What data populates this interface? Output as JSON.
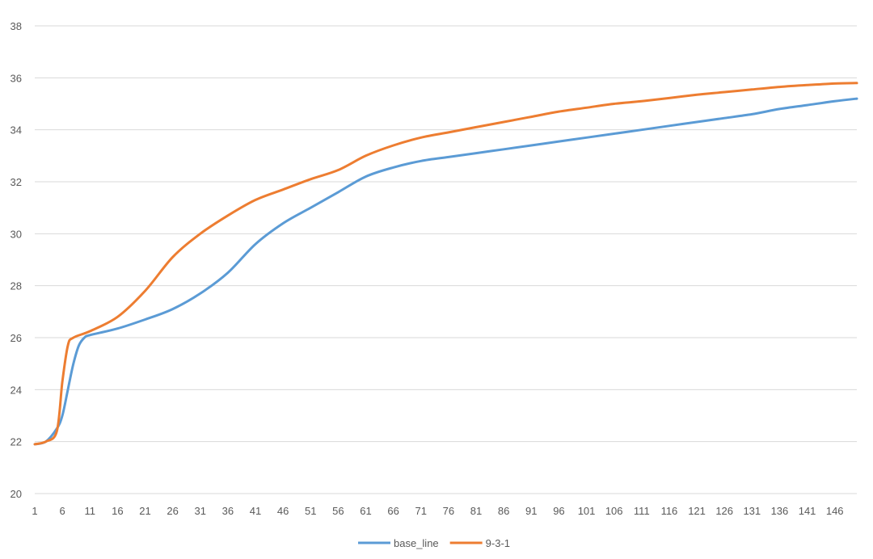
{
  "chart_data": {
    "type": "line",
    "title": "",
    "xlabel": "",
    "ylabel": "",
    "ylim": [
      20,
      38
    ],
    "y_ticks": [
      20,
      22,
      24,
      26,
      28,
      30,
      32,
      34,
      36,
      38
    ],
    "x_range": [
      1,
      150
    ],
    "x_ticks": [
      1,
      6,
      11,
      16,
      21,
      26,
      31,
      36,
      41,
      46,
      51,
      56,
      61,
      66,
      71,
      76,
      81,
      86,
      91,
      96,
      101,
      106,
      111,
      116,
      121,
      126,
      131,
      136,
      141,
      146
    ],
    "grid": "horizontal",
    "legend_position": "bottom",
    "series": [
      {
        "name": "base_line",
        "color": "#5B9BD5",
        "points": [
          [
            1,
            21.9
          ],
          [
            3,
            22.0
          ],
          [
            5,
            22.5
          ],
          [
            6,
            23.0
          ],
          [
            7,
            24.0
          ],
          [
            8,
            25.0
          ],
          [
            9,
            25.7
          ],
          [
            10,
            26.0
          ],
          [
            11,
            26.1
          ],
          [
            16,
            26.35
          ],
          [
            21,
            26.7
          ],
          [
            26,
            27.1
          ],
          [
            31,
            27.7
          ],
          [
            36,
            28.5
          ],
          [
            41,
            29.6
          ],
          [
            46,
            30.4
          ],
          [
            51,
            31.0
          ],
          [
            56,
            31.6
          ],
          [
            61,
            32.2
          ],
          [
            66,
            32.55
          ],
          [
            71,
            32.8
          ],
          [
            76,
            32.95
          ],
          [
            81,
            33.1
          ],
          [
            86,
            33.25
          ],
          [
            91,
            33.4
          ],
          [
            96,
            33.55
          ],
          [
            101,
            33.7
          ],
          [
            106,
            33.85
          ],
          [
            111,
            34.0
          ],
          [
            116,
            34.15
          ],
          [
            121,
            34.3
          ],
          [
            126,
            34.45
          ],
          [
            131,
            34.6
          ],
          [
            136,
            34.8
          ],
          [
            141,
            34.95
          ],
          [
            146,
            35.1
          ],
          [
            150,
            35.2
          ]
        ]
      },
      {
        "name": "9-3-1",
        "color": "#ED7D31",
        "points": [
          [
            1,
            21.9
          ],
          [
            3,
            22.0
          ],
          [
            5,
            22.4
          ],
          [
            6,
            24.3
          ],
          [
            7,
            25.7
          ],
          [
            8,
            26.0
          ],
          [
            11,
            26.25
          ],
          [
            16,
            26.8
          ],
          [
            21,
            27.8
          ],
          [
            26,
            29.1
          ],
          [
            31,
            30.0
          ],
          [
            36,
            30.7
          ],
          [
            41,
            31.3
          ],
          [
            46,
            31.7
          ],
          [
            51,
            32.1
          ],
          [
            56,
            32.45
          ],
          [
            61,
            33.0
          ],
          [
            66,
            33.4
          ],
          [
            71,
            33.7
          ],
          [
            76,
            33.9
          ],
          [
            81,
            34.1
          ],
          [
            86,
            34.3
          ],
          [
            91,
            34.5
          ],
          [
            96,
            34.7
          ],
          [
            101,
            34.85
          ],
          [
            106,
            35.0
          ],
          [
            111,
            35.1
          ],
          [
            116,
            35.22
          ],
          [
            121,
            35.35
          ],
          [
            126,
            35.45
          ],
          [
            131,
            35.55
          ],
          [
            136,
            35.65
          ],
          [
            141,
            35.72
          ],
          [
            146,
            35.78
          ],
          [
            150,
            35.8
          ]
        ]
      }
    ]
  }
}
